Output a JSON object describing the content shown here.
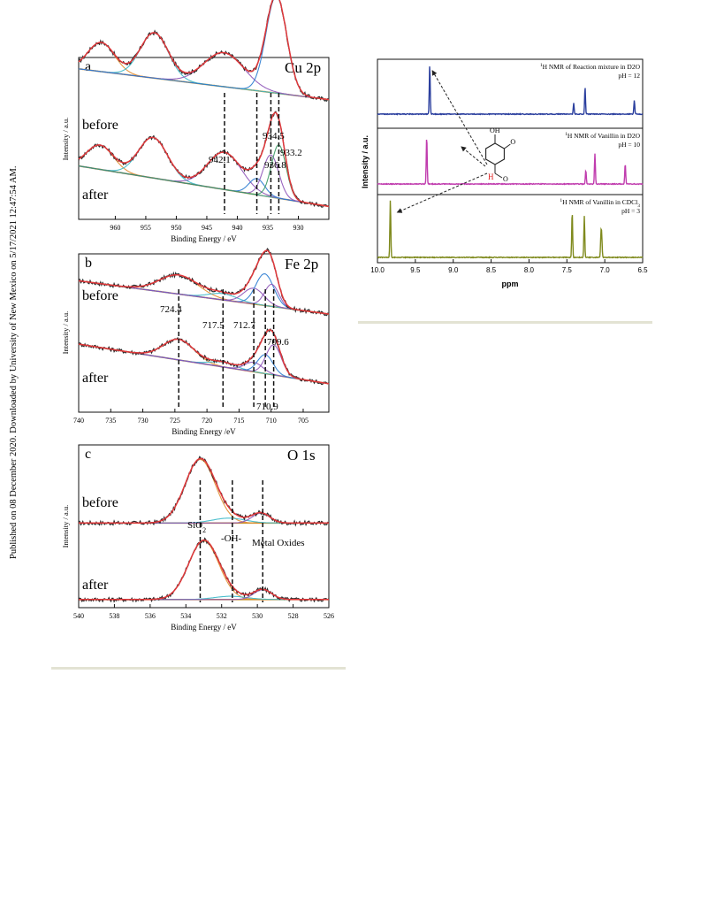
{
  "side_note": "Published on 08 December 2020. Downloaded by University of New Mexico on 5/17/2021 12:47:54 AM.",
  "colors": {
    "raw": "#2b2b2b",
    "fit": "#e0383b",
    "background": "#c8902a",
    "bg_line": "#3ab8c8",
    "peak_a": "#3a9a63",
    "peak_b": "#8e54b8",
    "peak_c": "#2a7bd0",
    "peak_d": "#e38c2e",
    "nmr_top": "#2b3f9e",
    "nmr_mid": "#c03cae",
    "nmr_bot": "#7f8a1d",
    "aldehyde": "#e02020"
  },
  "chart_data": [
    {
      "id": "xps-cu2p",
      "type": "line",
      "panel_letter": "a",
      "element_label": "Cu 2p",
      "xlabel": "Binding Energy / eV",
      "ylabel": "Intensity / a.u.",
      "xlim": [
        966,
        925
      ],
      "x_ticks": [
        960,
        955,
        950,
        945,
        940,
        935,
        930
      ],
      "traces": [
        {
          "name": "before",
          "baseline": [
            [
              966,
              0.93
            ],
            [
              925,
              0.74
            ]
          ],
          "peaks": [
            [
              962.3,
              0.18,
              2.2
            ],
            [
              953.6,
              0.28,
              2.3
            ],
            [
              942.2,
              0.21,
              3.3
            ],
            [
              933.6,
              0.6,
              1.7
            ]
          ]
        },
        {
          "name": "after",
          "baseline": [
            [
              966,
              0.33
            ],
            [
              925,
              0.08
            ]
          ],
          "peaks": [
            [
              962.5,
              0.15,
              2.2
            ],
            [
              953.8,
              0.25,
              2.4
            ],
            [
              942.1,
              0.23,
              2.8
            ],
            [
              936.8,
              0.1,
              1.3
            ],
            [
              934.5,
              0.26,
              1.3
            ],
            [
              933.2,
              0.33,
              1.2
            ]
          ]
        }
      ],
      "annotations": [
        "942.1",
        "936.8",
        "934.5",
        "933.2"
      ],
      "peak_markers": [
        942.1,
        936.8,
        934.5,
        933.2
      ]
    },
    {
      "id": "xps-fe2p",
      "type": "line",
      "panel_letter": "b",
      "element_label": "Fe 2p",
      "xlabel": "Binding Energy /eV",
      "ylabel": "Intensity / a.u.",
      "xlim": [
        740,
        701
      ],
      "x_ticks": [
        740,
        735,
        730,
        725,
        720,
        715,
        710,
        705
      ],
      "traces": [
        {
          "name": "before",
          "baseline": [
            [
              740,
              0.83
            ],
            [
              701,
              0.62
            ]
          ],
          "peaks": [
            [
              724.4,
              0.12,
              3.0
            ],
            [
              717.5,
              0.04,
              2.2
            ],
            [
              712.7,
              0.1,
              1.6
            ],
            [
              711.0,
              0.2,
              1.4
            ],
            [
              709.9,
              0.14,
              1.1
            ]
          ]
        },
        {
          "name": "after",
          "baseline": [
            [
              740,
              0.43
            ],
            [
              701,
              0.18
            ]
          ],
          "peaks": [
            [
              724.4,
              0.13,
              2.4
            ],
            [
              717.5,
              0.03,
              2.0
            ],
            [
              712.7,
              0.06,
              1.4
            ],
            [
              710.9,
              0.12,
              1.2
            ],
            [
              709.6,
              0.19,
              1.2
            ]
          ]
        }
      ],
      "annotations": [
        "724.4",
        "717.5",
        "712.7",
        "709.6",
        "710.9"
      ],
      "peak_markers": [
        724.4,
        717.5,
        712.7,
        710.9,
        709.6
      ]
    },
    {
      "id": "xps-o1s",
      "type": "line",
      "panel_letter": "c",
      "element_label": "O 1s",
      "xlabel": "Binding Energy / eV",
      "ylabel": "Intensity / a.u.",
      "xlim": [
        540,
        526
      ],
      "x_ticks": [
        540,
        538,
        536,
        534,
        532,
        530,
        528,
        526
      ],
      "traces": [
        {
          "name": "before",
          "baseline": [
            [
              540,
              0.52
            ],
            [
              526,
              0.52
            ]
          ],
          "peaks": [
            [
              533.2,
              0.39,
              0.85
            ],
            [
              531.6,
              0.03,
              0.9
            ],
            [
              529.8,
              0.06,
              0.5
            ]
          ]
        },
        {
          "name": "after",
          "baseline": [
            [
              540,
              0.05
            ],
            [
              526,
              0.05
            ]
          ],
          "peaks": [
            [
              533.0,
              0.36,
              0.85
            ],
            [
              531.5,
              0.02,
              0.9
            ],
            [
              529.7,
              0.06,
              0.5
            ]
          ]
        }
      ],
      "annotations": [
        "SiO2",
        "-OH-",
        "Metal Oxides"
      ],
      "peak_markers": [
        533.2,
        531.4,
        529.7
      ]
    },
    {
      "id": "nmr",
      "type": "line",
      "xlabel": "ppm",
      "ylabel": "Intensity / a.u.",
      "xlim": [
        10.0,
        6.5
      ],
      "x_ticks": [
        10.0,
        9.5,
        9.0,
        8.5,
        8.0,
        7.5,
        7.0,
        6.5
      ],
      "series": [
        {
          "name": "1H NMR of Reaction mixture in D2O",
          "condition": "pH = 12",
          "peaks": [
            [
              9.31,
              1.0
            ],
            [
              7.41,
              0.22
            ],
            [
              7.26,
              0.55
            ],
            [
              6.61,
              0.28
            ]
          ]
        },
        {
          "name": "1H NMR of Vanillin in D2O",
          "condition": "pH = 10",
          "peaks": [
            [
              9.35,
              0.95
            ],
            [
              7.25,
              0.28
            ],
            [
              7.13,
              0.6
            ],
            [
              6.73,
              0.4
            ]
          ]
        },
        {
          "name": "1H NMR of Vanillin in CDCl3",
          "condition": "pH = 3",
          "peaks": [
            [
              9.83,
              1.0
            ],
            [
              7.43,
              0.8
            ],
            [
              7.27,
              0.72
            ],
            [
              7.05,
              0.38
            ],
            [
              7.04,
              0.32
            ]
          ]
        }
      ],
      "structure_labels": [
        "OH",
        "O",
        "H",
        "O"
      ]
    }
  ]
}
